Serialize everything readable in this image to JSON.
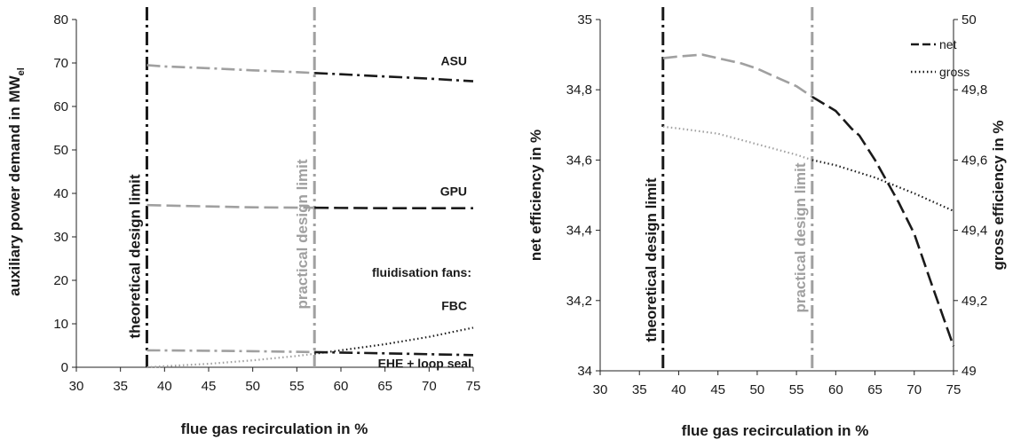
{
  "chart_data": [
    {
      "type": "line",
      "xlabel": "flue gas recirculation in %",
      "ylabel": "auxiliary power demand in MW",
      "ylabel_sub": "el",
      "xlim": [
        30,
        75
      ],
      "ylim": [
        0,
        80
      ],
      "x_ticks": [
        30,
        35,
        40,
        45,
        50,
        55,
        60,
        65,
        70,
        75
      ],
      "y_ticks": [
        "0",
        "10",
        "20",
        "30",
        "40",
        "50",
        "60",
        "70",
        "80"
      ],
      "y_tick_values": [
        0,
        10,
        20,
        30,
        40,
        50,
        60,
        70,
        80
      ],
      "grid": "none",
      "limits": [
        {
          "label": "theoretical design limit",
          "x": 38,
          "color": "#1a1a1a"
        },
        {
          "label": "practical design limit",
          "x": 57,
          "color": "#a0a0a0"
        }
      ],
      "series": [
        {
          "name": "ASU",
          "style": "dashdot",
          "x": [
            38,
            40,
            45,
            50,
            55,
            57,
            60,
            65,
            70,
            75
          ],
          "y": [
            69.5,
            69.2,
            68.8,
            68.3,
            67.9,
            67.7,
            67.4,
            66.9,
            66.4,
            65.8
          ]
        },
        {
          "name": "GPU",
          "style": "dash",
          "x": [
            38,
            45,
            50,
            57,
            65,
            75
          ],
          "y": [
            37.3,
            37.0,
            36.8,
            36.7,
            36.6,
            36.6
          ]
        },
        {
          "name": "FBC",
          "style": "dot",
          "x": [
            38,
            45,
            50,
            55,
            57,
            60,
            65,
            70,
            75
          ],
          "y": [
            0,
            0.8,
            1.6,
            2.6,
            3.1,
            3.9,
            5.3,
            7.0,
            9.1
          ]
        },
        {
          "name": "EHE + loop seal",
          "style": "dashdot",
          "x": [
            38,
            45,
            50,
            57,
            65,
            75
          ],
          "y": [
            3.9,
            3.8,
            3.7,
            3.5,
            3.2,
            2.8
          ]
        }
      ],
      "annotations": [
        {
          "text": "ASU",
          "x": 74.3,
          "y": 69.5
        },
        {
          "text": "GPU",
          "x": 74.3,
          "y": 39.5
        },
        {
          "text": "fluidisation fans:",
          "x": 74.8,
          "y": 20.8
        },
        {
          "text": "FBC",
          "x": 74.3,
          "y": 13.2
        },
        {
          "text": "EHE + loop seal",
          "x": 74.8,
          "y": -0.1
        }
      ]
    },
    {
      "type": "line",
      "xlabel": "flue gas recirculation in %",
      "ylabel": "net efficiency in %",
      "y2label": "gross efficiency in %",
      "xlim": [
        30,
        75
      ],
      "ylim": [
        34,
        35
      ],
      "y2lim": [
        49,
        50
      ],
      "x_ticks": [
        30,
        35,
        40,
        45,
        50,
        55,
        60,
        65,
        70,
        75
      ],
      "y_ticks": [
        "34",
        "34,2",
        "34,4",
        "34,6",
        "34,8",
        "35"
      ],
      "y_tick_values": [
        34,
        34.2,
        34.4,
        34.6,
        34.8,
        35
      ],
      "y2_ticks": [
        "49",
        "49,2",
        "49,4",
        "49,6",
        "49,8",
        "50"
      ],
      "y2_tick_values": [
        49,
        49.2,
        49.4,
        49.6,
        49.8,
        50
      ],
      "grid": "none",
      "legend_position": "top-right",
      "limits": [
        {
          "label": "theoretical design limit",
          "x": 38,
          "color": "#1a1a1a"
        },
        {
          "label": "practical design limit",
          "x": 57,
          "color": "#a0a0a0"
        }
      ],
      "series": [
        {
          "name": "net",
          "axis": "left",
          "style": "dash",
          "x": [
            38,
            40,
            43,
            45,
            48,
            50,
            53,
            55,
            57,
            60,
            62,
            63,
            65,
            68,
            70,
            72,
            75
          ],
          "y": [
            34.89,
            34.895,
            34.9,
            34.89,
            34.875,
            34.86,
            34.83,
            34.81,
            34.78,
            34.74,
            34.69,
            34.67,
            34.6,
            34.48,
            34.39,
            34.26,
            34.07
          ]
        },
        {
          "name": "gross",
          "axis": "right",
          "style": "dot",
          "x": [
            38,
            40,
            45,
            50,
            55,
            57,
            60,
            65,
            70,
            75
          ],
          "y": [
            49.695,
            49.69,
            49.675,
            49.645,
            49.615,
            49.6,
            49.585,
            49.55,
            49.505,
            49.455
          ]
        }
      ]
    }
  ]
}
